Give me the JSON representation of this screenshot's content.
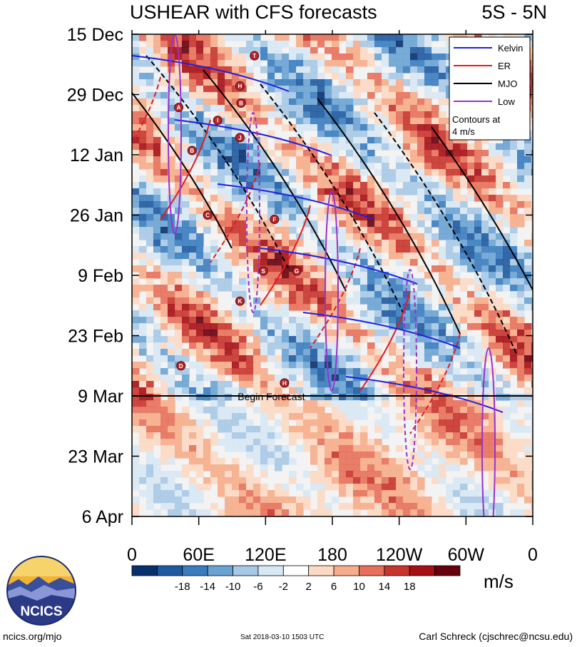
{
  "header": {
    "title": "USHEAR with CFS forecasts",
    "region": "5S - 5N"
  },
  "footer": {
    "site": "ncics.org/mjo",
    "timestamp": "Sat 2018-03-10 1503 UTC",
    "author": "Carl Schreck (cjschrec@ncsu.edu)"
  },
  "logo": {
    "text": "NCICS",
    "icon": "ncics-globe-logo"
  },
  "colorbar": {
    "unit": "m/s",
    "labels": [
      "-18",
      "-14",
      "-10",
      "-6",
      "-2",
      "2",
      "6",
      "10",
      "14",
      "18"
    ],
    "colors": [
      "#08306b",
      "#1f5aa0",
      "#3a7dbf",
      "#6aa3d3",
      "#a7c9e6",
      "#d8e8f4",
      "#ffffff",
      "#fcd9c4",
      "#f6ad8a",
      "#e7705a",
      "#c9342d",
      "#a50f15",
      "#67000d"
    ]
  },
  "chart_data": {
    "type": "heatmap",
    "title": "USHEAR with CFS forecasts",
    "subtitle": "5S - 5N",
    "x_tick_labels": [
      "0",
      "60E",
      "120E",
      "180",
      "120W",
      "60W",
      "0"
    ],
    "x_values": [
      0,
      60,
      120,
      180,
      240,
      300,
      360
    ],
    "y_tick_labels": [
      "15 Dec",
      "29 Dec",
      "12 Jan",
      "26 Jan",
      "9 Feb",
      "23 Feb",
      "9 Mar",
      "23 Mar",
      "6 Apr"
    ],
    "ylim": [
      "2017-12-15",
      "2018-04-06"
    ],
    "y_reversed": true,
    "forecast_start": {
      "date": "2018-03-09",
      "label": "Begin Forecast"
    },
    "legend": {
      "placement": "top-right",
      "entries": [
        {
          "name": "Kelvin",
          "color": "#1f1fe0"
        },
        {
          "name": "ER",
          "color": "#e41a1c"
        },
        {
          "name": "MJO",
          "color": "#000000"
        },
        {
          "name": "Low",
          "color": "#9932cc"
        }
      ],
      "note_line1": "Contours at",
      "note_line2": "4 m/s"
    },
    "storm_markers": [
      {
        "label": "T",
        "lon": 110,
        "date": "2017-12-20"
      },
      {
        "label": "H",
        "lon": 97,
        "date": "2017-12-27"
      },
      {
        "label": "B",
        "lon": 98,
        "date": "2017-12-31"
      },
      {
        "label": "A",
        "lon": 42,
        "date": "2018-01-01"
      },
      {
        "label": "I",
        "lon": 77,
        "date": "2018-01-04"
      },
      {
        "label": "J",
        "lon": 97,
        "date": "2018-01-08"
      },
      {
        "label": "B",
        "lon": 54,
        "date": "2018-01-11"
      },
      {
        "label": "C",
        "lon": 68,
        "date": "2018-01-26"
      },
      {
        "label": "F",
        "lon": 128,
        "date": "2018-01-27"
      },
      {
        "label": "S",
        "lon": 118,
        "date": "2018-02-08"
      },
      {
        "label": "G",
        "lon": 148,
        "date": "2018-02-08"
      },
      {
        "label": "K",
        "lon": 97,
        "date": "2018-02-15"
      },
      {
        "label": "D",
        "lon": 44,
        "date": "2018-03-02"
      },
      {
        "label": "H",
        "lon": 137,
        "date": "2018-03-06"
      }
    ]
  }
}
